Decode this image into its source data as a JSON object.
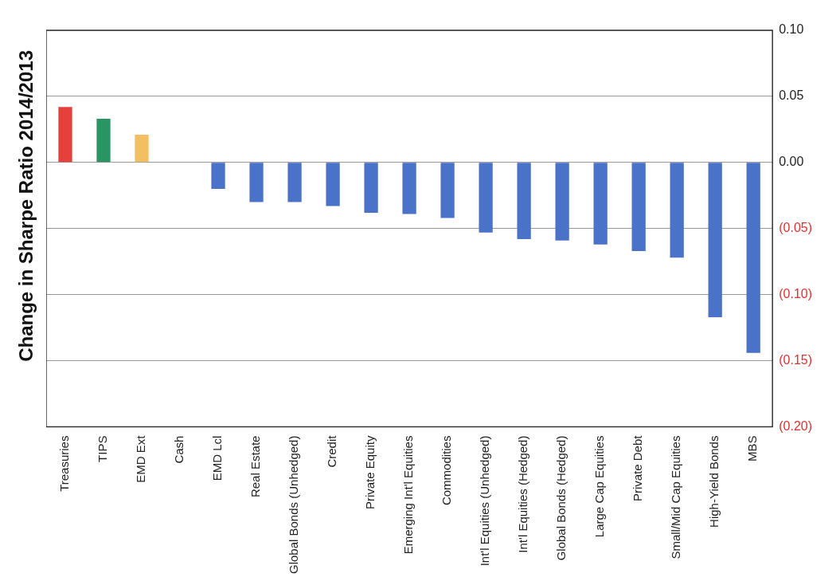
{
  "chart_data": {
    "type": "bar",
    "title": "Change in Sharpe Ratio 2014/2013",
    "categories": [
      "Treasuries",
      "TIPS",
      "EMD Ext",
      "Cash",
      "EMD Lcl",
      "Real Estate",
      "Global Bonds (Unhedged)",
      "Credit",
      "Private Equity",
      "Emerging Int'l Equities",
      "Commodities",
      "Int'l Equities (Unhedged)",
      "Int'l Equities (Hedged)",
      "Global Bonds (Hedged)",
      "Large Cap Equities",
      "Private Debt",
      "Small/Mid Cap Equities",
      "High-Yield Bonds",
      "MBS"
    ],
    "values": [
      0.042,
      0.033,
      0.021,
      0,
      -0.02,
      -0.03,
      -0.03,
      -0.033,
      -0.038,
      -0.039,
      -0.042,
      -0.053,
      -0.058,
      -0.059,
      -0.062,
      -0.067,
      -0.072,
      -0.117,
      -0.144
    ],
    "colors": [
      "#e5403c",
      "#2a9462",
      "#f2c062",
      "#4a72c8",
      "#4a72c8",
      "#4a72c8",
      "#4a72c8",
      "#4a72c8",
      "#4a72c8",
      "#4a72c8",
      "#4a72c8",
      "#4a72c8",
      "#4a72c8",
      "#4a72c8",
      "#4a72c8",
      "#4a72c8",
      "#4a72c8",
      "#4a72c8",
      "#4a72c8"
    ],
    "ylim": [
      -0.2,
      0.1
    ],
    "yticks": [
      {
        "value": -0.2,
        "label": "(0.20)"
      },
      {
        "value": -0.15,
        "label": "(0.15)"
      },
      {
        "value": -0.1,
        "label": "(0.10)"
      },
      {
        "value": -0.05,
        "label": "(0.05)"
      },
      {
        "value": 0,
        "label": "0.00"
      },
      {
        "value": 0.05,
        "label": "0.05"
      },
      {
        "value": 0.1,
        "label": "0.10"
      }
    ],
    "grid": "y",
    "legend": false
  }
}
